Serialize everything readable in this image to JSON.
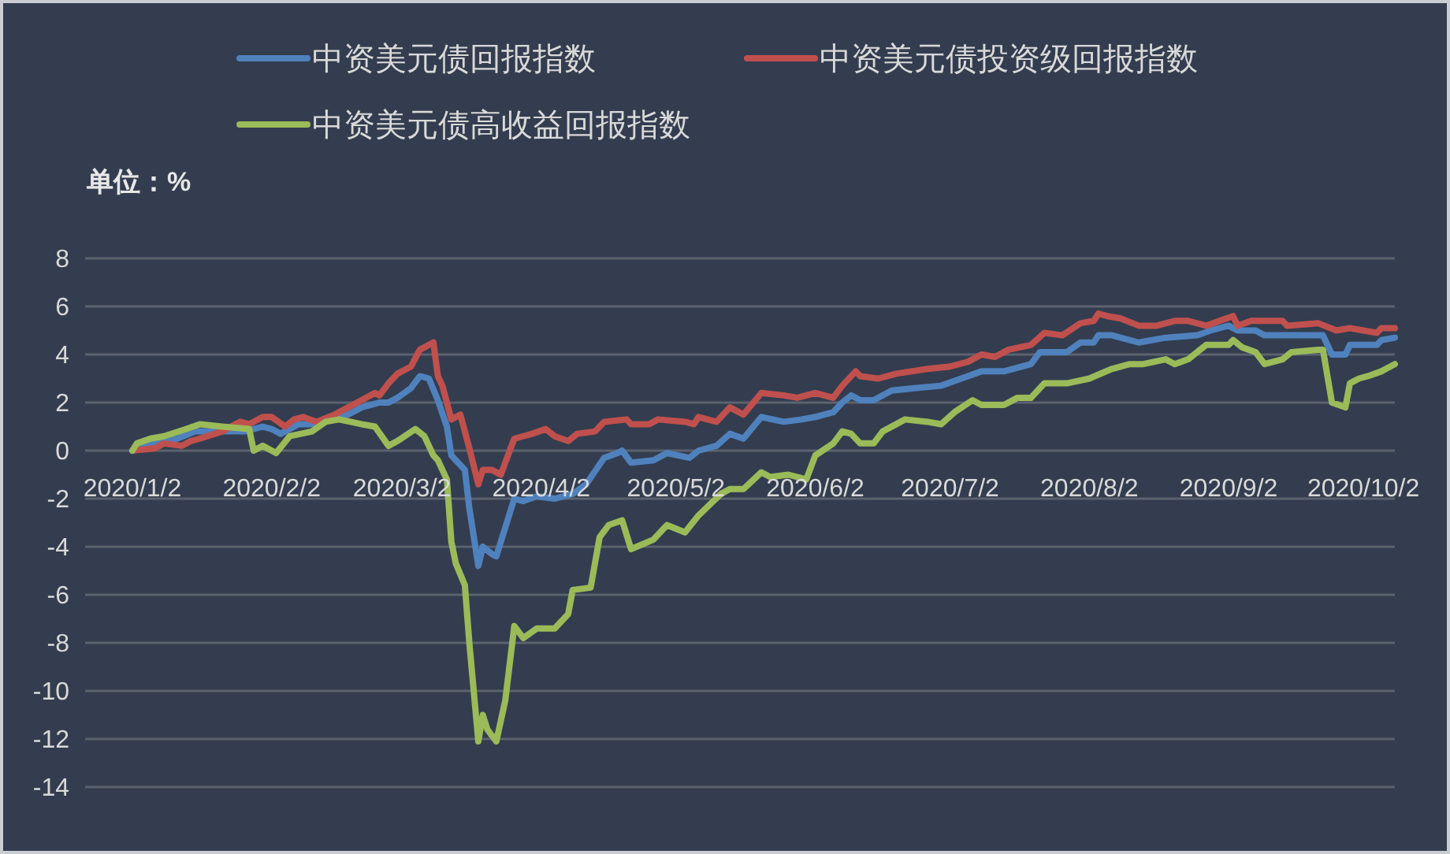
{
  "chart_data": {
    "type": "line",
    "ylabel": "单位：%",
    "legend": "top",
    "grid": "y",
    "xlim": [
      "2020-01-02",
      "2020-10-09"
    ],
    "xticks": [
      {
        "value": "2020-01-02",
        "label": "2020/1/2"
      },
      {
        "value": "2020-02-02",
        "label": "2020/2/2"
      },
      {
        "value": "2020-03-02",
        "label": "2020/3/2"
      },
      {
        "value": "2020-04-02",
        "label": "2020/4/2"
      },
      {
        "value": "2020-05-02",
        "label": "2020/5/2"
      },
      {
        "value": "2020-06-02",
        "label": "2020/6/2"
      },
      {
        "value": "2020-07-02",
        "label": "2020/7/2"
      },
      {
        "value": "2020-08-02",
        "label": "2020/8/2"
      },
      {
        "value": "2020-09-02",
        "label": "2020/9/2"
      },
      {
        "value": "2020-10-02",
        "label": "2020/10/2"
      }
    ],
    "ylim": [
      -14,
      8
    ],
    "yticks": [
      -14,
      -12,
      -10,
      -8,
      -6,
      -4,
      -2,
      0,
      2,
      4,
      6,
      8
    ],
    "series": [
      {
        "name": "中资美元债回报指数",
        "color": "#4f81bd",
        "x": [
          "2020-01-02",
          "2020-01-06",
          "2020-01-12",
          "2020-01-16",
          "2020-01-22",
          "2020-01-27",
          "2020-01-31",
          "2020-02-02",
          "2020-02-04",
          "2020-02-08",
          "2020-02-11",
          "2020-02-16",
          "2020-02-19",
          "2020-02-22",
          "2020-02-26",
          "2020-02-28",
          "2020-03-01",
          "2020-03-04",
          "2020-03-06",
          "2020-03-08",
          "2020-03-10",
          "2020-03-12",
          "2020-03-13",
          "2020-03-14",
          "2020-03-16",
          "2020-03-17",
          "2020-03-19",
          "2020-03-20",
          "2020-03-22",
          "2020-03-23",
          "2020-03-25",
          "2020-03-27",
          "2020-03-29",
          "2020-04-01",
          "2020-04-05",
          "2020-04-09",
          "2020-04-12",
          "2020-04-16",
          "2020-04-19",
          "2020-04-20",
          "2020-04-22",
          "2020-04-27",
          "2020-04-30",
          "2020-05-05",
          "2020-05-07",
          "2020-05-11",
          "2020-05-14",
          "2020-05-17",
          "2020-05-21",
          "2020-05-26",
          "2020-05-30",
          "2020-06-02",
          "2020-06-06",
          "2020-06-08",
          "2020-06-10",
          "2020-06-12",
          "2020-06-15",
          "2020-06-19",
          "2020-06-24",
          "2020-06-30",
          "2020-07-03",
          "2020-07-09",
          "2020-07-14",
          "2020-07-20",
          "2020-07-22",
          "2020-07-28",
          "2020-07-31",
          "2020-08-03",
          "2020-08-04",
          "2020-08-07",
          "2020-08-13",
          "2020-08-19",
          "2020-08-26",
          "2020-08-29",
          "2020-09-02",
          "2020-09-04",
          "2020-09-08",
          "2020-09-10",
          "2020-09-16",
          "2020-09-23",
          "2020-09-25",
          "2020-09-28",
          "2020-09-29",
          "2020-10-05",
          "2020-10-06",
          "2020-10-09"
        ],
        "values": [
          0,
          0.3,
          0.5,
          0.8,
          0.8,
          0.8,
          1.0,
          0.9,
          0.7,
          1.1,
          1.1,
          1.3,
          1.5,
          1.8,
          2.0,
          2.0,
          2.2,
          2.6,
          3.1,
          3.0,
          2.1,
          1.0,
          -0.2,
          -0.4,
          -0.8,
          -2.4,
          -4.8,
          -4.0,
          -4.3,
          -4.4,
          -3.2,
          -2.0,
          -2.1,
          -1.9,
          -2.0,
          -1.8,
          -1.4,
          -0.3,
          -0.1,
          0.0,
          -0.5,
          -0.4,
          -0.1,
          -0.3,
          0.0,
          0.2,
          0.7,
          0.5,
          1.4,
          1.2,
          1.3,
          1.4,
          1.6,
          2.0,
          2.3,
          2.1,
          2.1,
          2.5,
          2.6,
          2.7,
          2.9,
          3.3,
          3.3,
          3.6,
          4.1,
          4.1,
          4.5,
          4.5,
          4.8,
          4.8,
          4.5,
          4.7,
          4.8,
          5.0,
          5.2,
          5.0,
          5.0,
          4.8,
          4.8,
          4.8,
          4.0,
          4.0,
          4.4,
          4.4,
          4.6,
          4.7
        ]
      },
      {
        "name": "中资美元债投资级回报指数",
        "color": "#c0504d",
        "x": [
          "2020-01-02",
          "2020-01-07",
          "2020-01-09",
          "2020-01-13",
          "2020-01-15",
          "2020-01-17",
          "2020-01-22",
          "2020-01-26",
          "2020-01-28",
          "2020-01-31",
          "2020-02-02",
          "2020-02-05",
          "2020-02-07",
          "2020-02-09",
          "2020-02-12",
          "2020-02-16",
          "2020-02-19",
          "2020-02-22",
          "2020-02-25",
          "2020-02-26",
          "2020-02-28",
          "2020-03-01",
          "2020-03-04",
          "2020-03-06",
          "2020-03-09",
          "2020-03-10",
          "2020-03-11",
          "2020-03-13",
          "2020-03-15",
          "2020-03-17",
          "2020-03-19",
          "2020-03-20",
          "2020-03-22",
          "2020-03-24",
          "2020-03-27",
          "2020-03-31",
          "2020-04-03",
          "2020-04-05",
          "2020-04-08",
          "2020-04-10",
          "2020-04-14",
          "2020-04-16",
          "2020-04-21",
          "2020-04-22",
          "2020-04-26",
          "2020-04-28",
          "2020-05-04",
          "2020-05-06",
          "2020-05-07",
          "2020-05-11",
          "2020-05-14",
          "2020-05-17",
          "2020-05-21",
          "2020-05-26",
          "2020-05-29",
          "2020-06-02",
          "2020-06-06",
          "2020-06-08",
          "2020-06-11",
          "2020-06-12",
          "2020-06-16",
          "2020-06-20",
          "2020-06-27",
          "2020-07-02",
          "2020-07-06",
          "2020-07-09",
          "2020-07-12",
          "2020-07-15",
          "2020-07-20",
          "2020-07-23",
          "2020-07-27",
          "2020-07-31",
          "2020-08-03",
          "2020-08-04",
          "2020-08-06",
          "2020-08-09",
          "2020-08-13",
          "2020-08-17",
          "2020-08-21",
          "2020-08-24",
          "2020-08-28",
          "2020-08-31",
          "2020-09-03",
          "2020-09-04",
          "2020-09-07",
          "2020-09-14",
          "2020-09-15",
          "2020-09-22",
          "2020-09-26",
          "2020-09-29",
          "2020-10-05",
          "2020-10-06",
          "2020-10-09"
        ],
        "values": [
          0,
          0.1,
          0.3,
          0.2,
          0.4,
          0.5,
          0.8,
          1.2,
          1.1,
          1.4,
          1.4,
          1.0,
          1.3,
          1.4,
          1.2,
          1.5,
          1.8,
          2.1,
          2.4,
          2.3,
          2.8,
          3.2,
          3.5,
          4.2,
          4.5,
          3.1,
          2.7,
          1.3,
          1.5,
          0.1,
          -1.4,
          -0.8,
          -0.8,
          -1.0,
          0.5,
          0.7,
          0.9,
          0.6,
          0.4,
          0.7,
          0.8,
          1.2,
          1.3,
          1.1,
          1.1,
          1.3,
          1.2,
          1.1,
          1.4,
          1.2,
          1.8,
          1.5,
          2.4,
          2.3,
          2.2,
          2.4,
          2.2,
          2.7,
          3.3,
          3.1,
          3.0,
          3.2,
          3.4,
          3.5,
          3.7,
          4.0,
          3.9,
          4.2,
          4.4,
          4.9,
          4.8,
          5.3,
          5.4,
          5.7,
          5.6,
          5.5,
          5.2,
          5.2,
          5.4,
          5.4,
          5.2,
          5.4,
          5.6,
          5.2,
          5.4,
          5.4,
          5.2,
          5.3,
          5.0,
          5.1,
          4.9,
          5.1,
          5.1
        ]
      },
      {
        "name": "中资美元债高收益回报指数",
        "color": "#9bbb59",
        "x": [
          "2020-01-02",
          "2020-01-03",
          "2020-01-06",
          "2020-01-09",
          "2020-01-14",
          "2020-01-17",
          "2020-01-22",
          "2020-01-28",
          "2020-01-29",
          "2020-01-31",
          "2020-02-03",
          "2020-02-06",
          "2020-02-11",
          "2020-02-14",
          "2020-02-17",
          "2020-02-22",
          "2020-02-25",
          "2020-02-28",
          "2020-03-01",
          "2020-03-05",
          "2020-03-07",
          "2020-03-09",
          "2020-03-10",
          "2020-03-12",
          "2020-03-13",
          "2020-03-14",
          "2020-03-16",
          "2020-03-17",
          "2020-03-19",
          "2020-03-20",
          "2020-03-21",
          "2020-03-23",
          "2020-03-25",
          "2020-03-27",
          "2020-03-29",
          "2020-04-01",
          "2020-04-05",
          "2020-04-08",
          "2020-04-09",
          "2020-04-13",
          "2020-04-15",
          "2020-04-17",
          "2020-04-20",
          "2020-04-22",
          "2020-04-27",
          "2020-04-30",
          "2020-05-04",
          "2020-05-07",
          "2020-05-12",
          "2020-05-14",
          "2020-05-17",
          "2020-05-21",
          "2020-05-23",
          "2020-05-27",
          "2020-05-31",
          "2020-06-02",
          "2020-06-06",
          "2020-06-08",
          "2020-06-10",
          "2020-06-12",
          "2020-06-15",
          "2020-06-17",
          "2020-06-22",
          "2020-06-27",
          "2020-06-30",
          "2020-07-03",
          "2020-07-07",
          "2020-07-09",
          "2020-07-14",
          "2020-07-17",
          "2020-07-20",
          "2020-07-23",
          "2020-07-28",
          "2020-08-02",
          "2020-08-07",
          "2020-08-11",
          "2020-08-14",
          "2020-08-19",
          "2020-08-21",
          "2020-08-24",
          "2020-08-28",
          "2020-09-02",
          "2020-09-03",
          "2020-09-05",
          "2020-09-08",
          "2020-09-10",
          "2020-09-14",
          "2020-09-16",
          "2020-09-22",
          "2020-09-23",
          "2020-09-25",
          "2020-09-28",
          "2020-09-29",
          "2020-10-01",
          "2020-10-03",
          "2020-10-06",
          "2020-10-07",
          "2020-10-09"
        ],
        "values": [
          0,
          0.3,
          0.5,
          0.6,
          0.9,
          1.1,
          1.0,
          0.9,
          0.0,
          0.2,
          -0.1,
          0.6,
          0.8,
          1.2,
          1.3,
          1.1,
          1.0,
          0.2,
          0.4,
          0.9,
          0.6,
          -0.2,
          -0.4,
          -1.2,
          -3.8,
          -4.7,
          -5.6,
          -8.0,
          -12.1,
          -11.0,
          -11.6,
          -12.1,
          -10.4,
          -7.3,
          -7.8,
          -7.4,
          -7.4,
          -6.8,
          -5.8,
          -5.7,
          -3.6,
          -3.1,
          -2.9,
          -4.1,
          -3.7,
          -3.1,
          -3.4,
          -2.7,
          -1.8,
          -1.6,
          -1.6,
          -0.9,
          -1.1,
          -1.0,
          -1.2,
          -0.2,
          0.3,
          0.8,
          0.7,
          0.3,
          0.3,
          0.8,
          1.3,
          1.2,
          1.1,
          1.6,
          2.1,
          1.9,
          1.9,
          2.2,
          2.2,
          2.8,
          2.8,
          3.0,
          3.4,
          3.6,
          3.6,
          3.8,
          3.6,
          3.8,
          4.4,
          4.4,
          4.6,
          4.3,
          4.1,
          3.6,
          3.8,
          4.1,
          4.2,
          4.2,
          2.0,
          1.8,
          2.8,
          3.0,
          3.1,
          3.3,
          3.4,
          3.6
        ]
      }
    ]
  }
}
